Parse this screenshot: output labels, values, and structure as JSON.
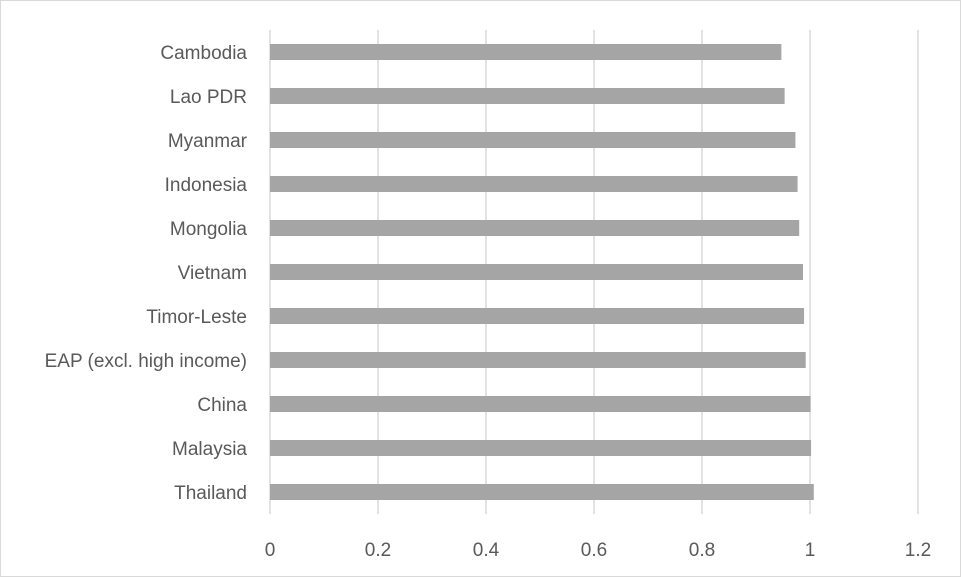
{
  "chart_data": {
    "type": "bar",
    "orientation": "horizontal",
    "title": "",
    "xlabel": "",
    "ylabel": "",
    "categories": [
      "Cambodia",
      "Lao PDR",
      "Myanmar",
      "Indonesia",
      "Mongolia",
      "Vietnam",
      "Timor-Leste",
      "EAP (excl. high income)",
      "China",
      "Malaysia",
      "Thailand"
    ],
    "values": [
      0.947,
      0.953,
      0.973,
      0.977,
      0.98,
      0.987,
      0.989,
      0.992,
      1.001,
      1.002,
      1.007
    ],
    "xlim": [
      0,
      1.2
    ],
    "x_ticks": [
      "0",
      "0.2",
      "0.4",
      "0.6",
      "0.8",
      "1",
      "1.2"
    ],
    "x_tick_values": [
      0,
      0.2,
      0.4,
      0.6,
      0.8,
      1.0,
      1.2
    ],
    "grid": "vertical",
    "bar_color": "#a5a5a5",
    "grid_color": "#d9d9d9",
    "legend": "none"
  }
}
